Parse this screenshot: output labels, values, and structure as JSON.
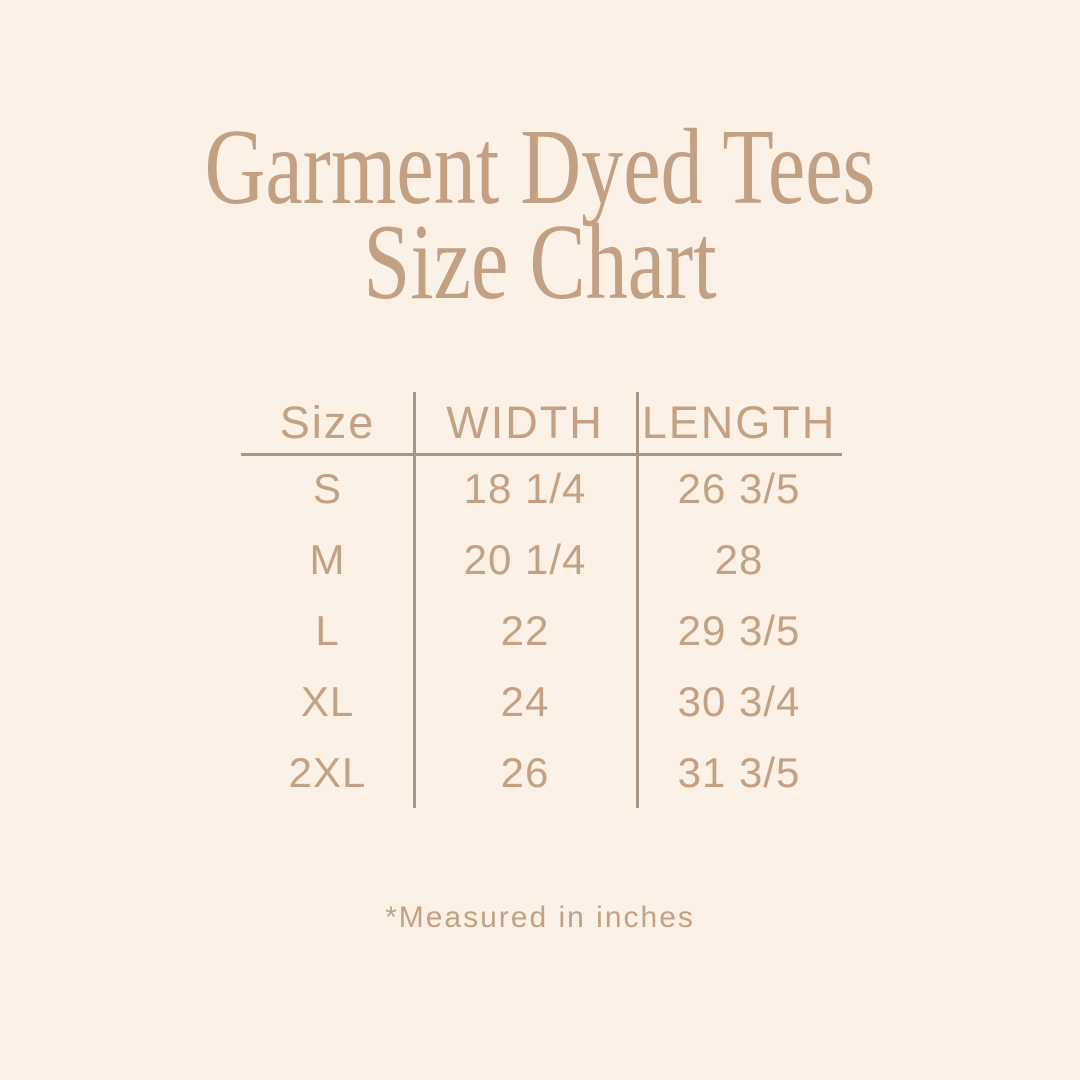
{
  "colors": {
    "background": "#FBF1E7",
    "title_text": "#C2A083",
    "table_text": "#C2A184",
    "divider_line": "#A79585"
  },
  "title": {
    "line1": "Garment Dyed Tees",
    "line2": "Size Chart"
  },
  "table": {
    "headers": {
      "size": "Size",
      "width": "WIDTH",
      "length": "LENGTH"
    },
    "rows": [
      {
        "size": "S",
        "width": "18 1/4",
        "length": "26 3/5"
      },
      {
        "size": "M",
        "width": "20 1/4",
        "length": "28"
      },
      {
        "size": "L",
        "width": "22",
        "length": "29 3/5"
      },
      {
        "size": "XL",
        "width": "24",
        "length": "30 3/4"
      },
      {
        "size": "2XL",
        "width": "26",
        "length": "31 3/5"
      }
    ]
  },
  "footer": {
    "note": "*Measured in inches"
  }
}
